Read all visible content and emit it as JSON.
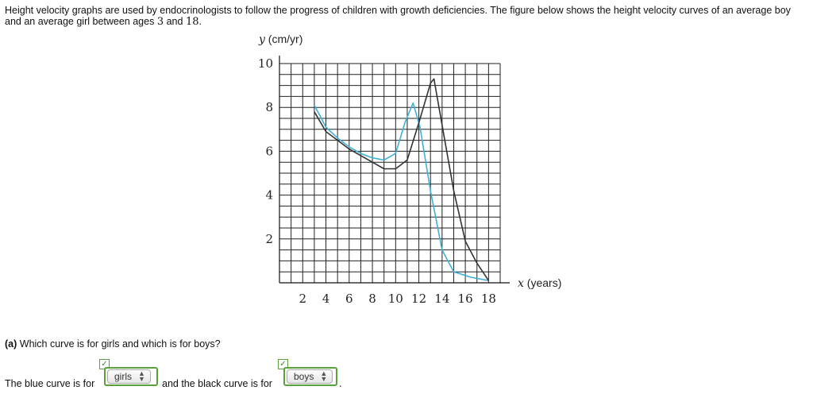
{
  "intro": {
    "text": "Height velocity graphs are used by endocrinologists to follow the progress of children with growth deficiencies. The figure below shows the height velocity curves of an average boy and an average girl between ages",
    "age_start": "3",
    "conj": "and",
    "age_end": "18",
    "end": "."
  },
  "question": {
    "part": "(a)",
    "text": "Which curve is for girls and which is for boys?"
  },
  "answer": {
    "prefix": "The blue curve is for",
    "blue_selected": "girls",
    "middle": "and the black curve is for",
    "black_selected": "boys",
    "suffix": "."
  },
  "colors": {
    "blue_curve": "#3fb0d8",
    "black_curve": "#333333",
    "grid": "#222222",
    "correct_border": "#5aa03d"
  },
  "icons": [
    "checkmark-icon",
    "dropdown-arrow-icon"
  ],
  "chart_data": {
    "type": "line",
    "ylabel": "y (cm/yr)",
    "xlabel": "x (years)",
    "xlim": [
      0,
      19
    ],
    "ylim": [
      0,
      10
    ],
    "x_ticks": [
      2,
      4,
      6,
      8,
      10,
      12,
      14,
      16,
      18
    ],
    "y_ticks": [
      2,
      4,
      6,
      8,
      10
    ],
    "grid": true,
    "series": [
      {
        "color": "#3fb0d8",
        "points": [
          [
            3,
            8.1
          ],
          [
            4,
            7.1
          ],
          [
            5,
            6.6
          ],
          [
            6,
            6.2
          ],
          [
            7,
            5.9
          ],
          [
            8,
            5.7
          ],
          [
            9,
            5.6
          ],
          [
            10,
            5.9
          ],
          [
            10.8,
            7.3
          ],
          [
            11.5,
            8.2
          ],
          [
            12.1,
            7.1
          ],
          [
            13,
            4.2
          ],
          [
            14,
            1.5
          ],
          [
            15,
            0.5
          ],
          [
            16.5,
            0.25
          ],
          [
            18,
            0.1
          ]
        ]
      },
      {
        "color": "#333333",
        "points": [
          [
            3,
            7.8
          ],
          [
            4,
            6.9
          ],
          [
            5,
            6.5
          ],
          [
            6,
            6.1
          ],
          [
            7,
            5.8
          ],
          [
            8,
            5.5
          ],
          [
            9,
            5.2
          ],
          [
            10,
            5.2
          ],
          [
            11,
            5.6
          ],
          [
            12,
            7.3
          ],
          [
            13,
            9.1
          ],
          [
            13.3,
            9.3
          ],
          [
            14,
            7.2
          ],
          [
            15,
            4.2
          ],
          [
            16,
            1.9
          ],
          [
            17,
            0.9
          ],
          [
            18,
            0.1
          ]
        ]
      }
    ]
  }
}
